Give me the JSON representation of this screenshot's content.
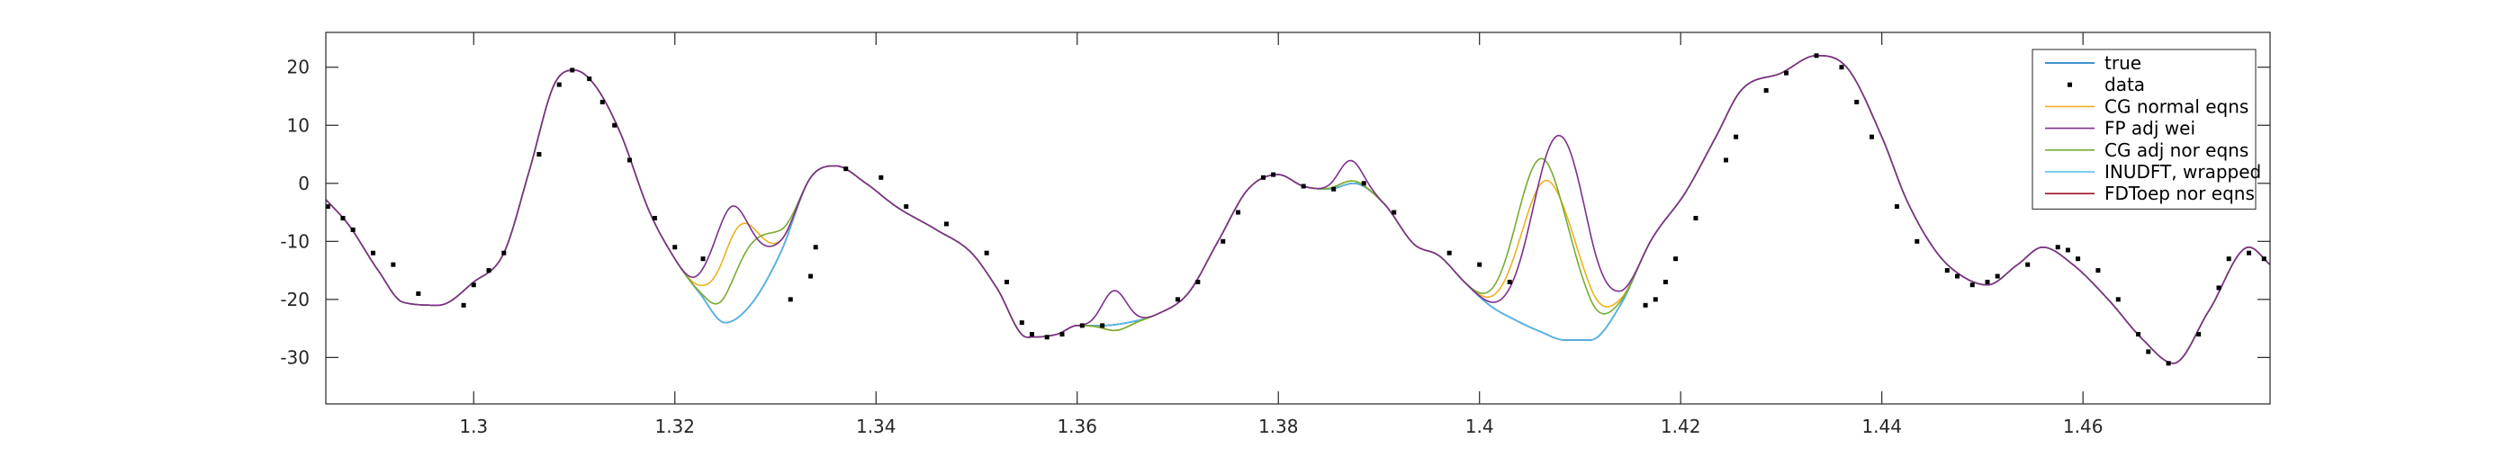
{
  "chart_data": {
    "type": "line",
    "title": "",
    "xlabel": "",
    "ylabel": "",
    "xlim": [
      1.2853,
      1.4786
    ],
    "ylim": [
      -38,
      26
    ],
    "grid": false,
    "legend_location": "top-right",
    "x_ticks": [
      1.3,
      1.32,
      1.34,
      1.36,
      1.38,
      1.4,
      1.42,
      1.44,
      1.46
    ],
    "x_tick_labels": [
      "1.3",
      "1.32",
      "1.34",
      "1.36",
      "1.38",
      "1.4",
      "1.42",
      "1.44",
      "1.46"
    ],
    "y_ticks": [
      -30,
      -20,
      -10,
      0,
      10,
      20
    ],
    "y_tick_labels": [
      "-30",
      "-20",
      "-10",
      "0",
      "10",
      "20"
    ],
    "colors": {
      "true": "#0072bd",
      "data": "#000000",
      "cg_normal": "#edb120",
      "fp_adj_wei": "#7e2f8e",
      "cg_adj_nor": "#77ac30",
      "inudft": "#4dbeee",
      "fdtoep": "#a2142f"
    },
    "base_curve": {
      "x": [
        1.2853,
        1.2875,
        1.2905,
        1.293,
        1.2965,
        1.3,
        1.303,
        1.3055,
        1.308,
        1.31,
        1.312,
        1.3145,
        1.3175,
        1.32,
        1.3225,
        1.325,
        1.3275,
        1.3305,
        1.3335,
        1.336,
        1.339,
        1.342,
        1.346,
        1.3495,
        1.352,
        1.355,
        1.358,
        1.36,
        1.3625,
        1.365,
        1.368,
        1.371,
        1.374,
        1.377,
        1.38,
        1.3825,
        1.385,
        1.3875,
        1.3905,
        1.3935,
        1.396,
        1.3985,
        1.401,
        1.4035,
        1.406,
        1.4085,
        1.411,
        1.414,
        1.417,
        1.4205,
        1.4235,
        1.426,
        1.43,
        1.4335,
        1.4365,
        1.44,
        1.4425,
        1.4455,
        1.448,
        1.4505,
        1.4535,
        1.456,
        1.459,
        1.4625,
        1.466,
        1.469,
        1.4725,
        1.4765,
        1.4786
      ],
      "y": [
        -2.8,
        -7,
        -15,
        -20.5,
        -21,
        -17,
        -12,
        2,
        17,
        19.5,
        17,
        9,
        -5,
        -13,
        -19,
        -24,
        -21,
        -12,
        1,
        3,
        0,
        -4,
        -8,
        -12,
        -18,
        -26.5,
        -26,
        -24.5,
        -24.5,
        -24,
        -22.5,
        -19,
        -10,
        -1,
        1.5,
        -0.5,
        -1,
        0,
        -3.5,
        -10.5,
        -12.5,
        -17,
        -21,
        -23.5,
        -25.5,
        -27,
        -27,
        -21,
        -10,
        -1.5,
        8,
        16,
        19,
        22,
        20,
        8,
        -3,
        -12,
        -16,
        -17.5,
        -14,
        -11,
        -14,
        -20,
        -27,
        -31,
        -22,
        -11,
        -14
      ]
    },
    "series": [
      {
        "name": "true",
        "key": "true",
        "color": "#0072bd",
        "deviations": []
      },
      {
        "name": "data",
        "key": "data",
        "color": "#000000",
        "marker": "square",
        "x": [
          1.2855,
          1.287,
          1.288,
          1.29,
          1.292,
          1.2945,
          1.299,
          1.3,
          1.3015,
          1.303,
          1.3065,
          1.3085,
          1.3098,
          1.3115,
          1.3128,
          1.314,
          1.3155,
          1.318,
          1.32,
          1.3228,
          1.3315,
          1.3335,
          1.334,
          1.337,
          1.3405,
          1.343,
          1.347,
          1.351,
          1.353,
          1.3545,
          1.3555,
          1.357,
          1.3585,
          1.3605,
          1.3625,
          1.37,
          1.372,
          1.3745,
          1.376,
          1.3785,
          1.3795,
          1.3825,
          1.3855,
          1.3885,
          1.3915,
          1.397,
          1.4,
          1.403,
          1.4165,
          1.4175,
          1.4185,
          1.4195,
          1.4215,
          1.4245,
          1.4255,
          1.4285,
          1.4305,
          1.4335,
          1.436,
          1.4375,
          1.439,
          1.4415,
          1.4435,
          1.4465,
          1.4475,
          1.449,
          1.4505,
          1.4515,
          1.4545,
          1.4575,
          1.4585,
          1.4595,
          1.4615,
          1.4635,
          1.4655,
          1.4665,
          1.4685,
          1.4715,
          1.4735,
          1.4745,
          1.4765,
          1.478
        ],
        "y": [
          -4,
          -6,
          -8,
          -12,
          -14,
          -19,
          -21,
          -17.5,
          -15,
          -12,
          5,
          17,
          19.5,
          18,
          14,
          10,
          4,
          -6,
          -11,
          -13,
          -20,
          -16,
          -11,
          2.5,
          1,
          -4,
          -7,
          -12,
          -17,
          -24,
          -26,
          -26.5,
          -26,
          -24.5,
          -24.5,
          -20,
          -17,
          -10,
          -5,
          1,
          1.5,
          -0.5,
          -1,
          0,
          -5,
          -12,
          -14,
          -17,
          -21,
          -20,
          -17,
          -13,
          -6,
          4,
          8,
          16,
          19,
          22,
          20,
          14,
          8,
          -4,
          -10,
          -15,
          -16,
          -17.5,
          -17,
          -16,
          -14,
          -11,
          -11.5,
          -13,
          -15,
          -20,
          -26,
          -29,
          -31,
          -26,
          -18,
          -13,
          -12,
          -13
        ]
      },
      {
        "name": "CG normal eqns",
        "key": "cg_normal",
        "color": "#edb120",
        "deviations": [
          [
            1.3202,
            1.3335,
            [
              1.3255,
              13
            ],
            [
              1.3285,
              6
            ]
          ],
          [
            1.3595,
            1.3685,
            [
              1.364,
              -1
            ]
          ],
          [
            1.383,
            1.3915,
            [
              1.3865,
              0.5
            ]
          ],
          [
            1.398,
            1.4165,
            [
              1.4062,
              25
            ],
            [
              1.4115,
              7
            ]
          ]
        ]
      },
      {
        "name": "FP adj wei",
        "key": "fp_adj_wei",
        "color": "#7e2f8e",
        "deviations": [
          [
            1.3202,
            1.3335,
            [
              1.3247,
              22
            ],
            [
              1.3292,
              5
            ]
          ],
          [
            1.3595,
            1.3685,
            [
              1.3635,
              6
            ]
          ],
          [
            1.383,
            1.3915,
            [
              1.387,
              4
            ]
          ],
          [
            1.398,
            1.4165,
            [
              1.408,
              33
            ],
            [
              1.413,
              10
            ]
          ]
        ]
      },
      {
        "name": "CG adj nor eqns",
        "key": "cg_adj_nor",
        "color": "#77ac30",
        "deviations": [
          [
            1.3202,
            1.3335,
            [
              1.327,
              8
            ],
            [
              1.3305,
              7
            ]
          ],
          [
            1.3595,
            1.3685,
            [
              1.364,
              -1
            ]
          ],
          [
            1.383,
            1.3915,
            [
              1.3865,
              0.5
            ]
          ],
          [
            1.398,
            1.4165,
            [
              1.4055,
              30
            ],
            [
              1.4108,
              5
            ]
          ]
        ]
      },
      {
        "name": "INUDFT, wrapped",
        "key": "inudft",
        "color": "#4dbeee",
        "deviations": []
      },
      {
        "name": "FDToep nor eqns",
        "key": "fdtoep",
        "color": "#a2142f",
        "deviations": []
      }
    ]
  }
}
